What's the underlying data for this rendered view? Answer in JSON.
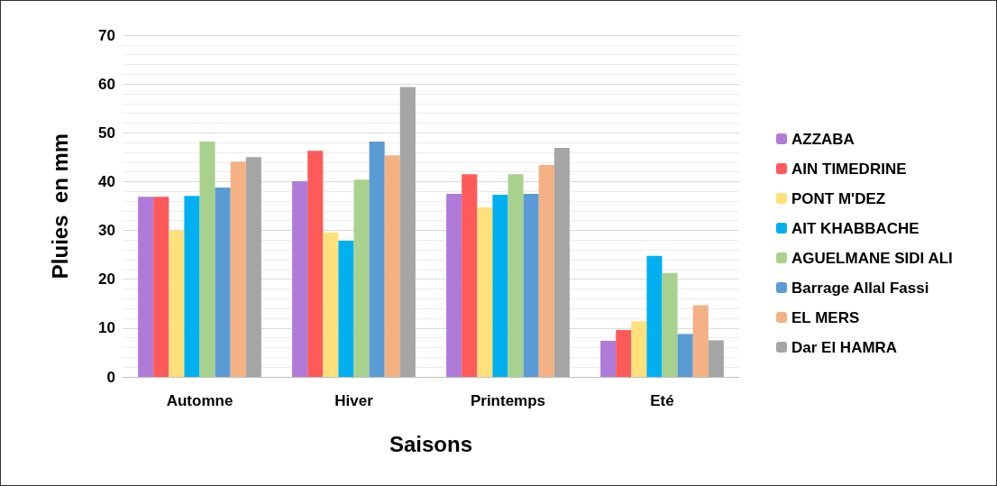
{
  "chart_data": {
    "type": "bar",
    "xlabel": "Saisons",
    "ylabel": "Pluies  en mm",
    "categories": [
      "Automne",
      "Hiver",
      "Printemps",
      "Eté"
    ],
    "series": [
      {
        "name": "AZZABA",
        "color": "#b07ad8",
        "values": [
          36.9,
          40.1,
          37.5,
          7.4
        ]
      },
      {
        "name": "AIN TIMEDRINE",
        "color": "#ff5a5a",
        "values": [
          36.9,
          46.3,
          41.5,
          9.6
        ]
      },
      {
        "name": "PONT M'DEZ",
        "color": "#ffe07a",
        "values": [
          30,
          29.6,
          34.7,
          11.4
        ]
      },
      {
        "name": "AIT KHABBACHE",
        "color": "#00b0f0",
        "values": [
          37.1,
          27.9,
          37.3,
          24.8
        ]
      },
      {
        "name": "AGUELMANE SIDI ALI",
        "color": "#a9d18e",
        "values": [
          48.2,
          40.4,
          41.5,
          21.3
        ]
      },
      {
        "name": "Barrage Allal Fassi",
        "color": "#5b9bd5",
        "values": [
          38.8,
          48.2,
          37.5,
          8.8
        ]
      },
      {
        "name": "EL MERS",
        "color": "#f4b183",
        "values": [
          44.1,
          45.4,
          43.4,
          14.7
        ]
      },
      {
        "name": "Dar El HAMRA",
        "color": "#a5a5a5",
        "values": [
          45,
          59.4,
          46.9,
          7.5
        ]
      }
    ],
    "ylim": [
      0,
      70
    ],
    "yticks": [
      0,
      10,
      20,
      30,
      40,
      50,
      60,
      70
    ],
    "grid": "y",
    "legend": "right"
  }
}
